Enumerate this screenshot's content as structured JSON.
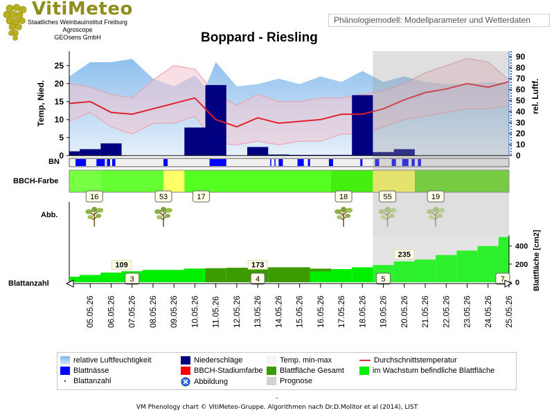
{
  "header": {
    "logo_text": "VitiMeteo",
    "logo_lines": [
      "Staatliches Weinbauinstitut Freiburg",
      "Agroscope",
      "GEOsens GmbH"
    ],
    "model_label": "Phänologiemodell: Modellparameter und Wetterdaten",
    "title": "Boppard - Riesling"
  },
  "colors": {
    "humidity": "#a9cdf0",
    "precip": "#000080",
    "temp_band": "#f2c6cf",
    "temp_line": "#e03030",
    "leafwet": "#0000ff",
    "bbch_green": "#66ff33",
    "bbch_yellow": "#ffff66",
    "leaf_total": "#3b9b00",
    "leaf_growing": "#00ee00",
    "forecast": "#d3d3d3"
  },
  "chart_data": {
    "type": "line",
    "dates": [
      "05.05.26",
      "06.05.26",
      "07.05.26",
      "08.05.26",
      "09.05.26",
      "10.05.26",
      "11.05.26",
      "12.05.26",
      "13.05.26",
      "14.05.26",
      "15.05.26",
      "16.05.26",
      "17.05.26",
      "18.05.26",
      "19.05.26",
      "20.05.26",
      "21.05.26",
      "22.05.26",
      "23.05.26",
      "24.05.26",
      "25.05.26"
    ],
    "y_left_label": "Temp, Nied.",
    "y_left_ticks": [
      0,
      5,
      10,
      15,
      20,
      25
    ],
    "y_left_range": [
      0,
      29
    ],
    "y_right_label": "rel. Luftf.",
    "y_right_ticks": [
      0,
      10,
      20,
      30,
      40,
      50,
      60,
      70,
      80,
      90
    ],
    "y_right_range": [
      0,
      95
    ],
    "forecast_from": "19.05.26",
    "humidity_x": [
      4.0,
      5.0,
      6.0,
      7.0,
      8.0,
      9.0,
      10.0,
      10.5,
      11.0,
      12.0,
      13.0,
      14.0,
      15.0,
      16.0,
      17.0,
      18.0,
      19.0,
      20.0,
      21.0,
      22.0,
      23.0,
      24.0,
      25.0
    ],
    "humidity_values": [
      72,
      85,
      85,
      88,
      70,
      63,
      73,
      62,
      85,
      63,
      65,
      70,
      65,
      72,
      67,
      77,
      67,
      72,
      67,
      65,
      65,
      67,
      65
    ],
    "temp_x": [
      4.0,
      5.0,
      6.0,
      7.0,
      8.0,
      9.0,
      10.0,
      11.0,
      12.0,
      13.0,
      14.0,
      15.0,
      16.0,
      17.0,
      18.0,
      19.0,
      20.0,
      21.0,
      22.0,
      23.0,
      24.0,
      25.0
    ],
    "temp_min": [
      9.5,
      12,
      8,
      6,
      9,
      9,
      11,
      3.5,
      3,
      4,
      3,
      4,
      4,
      6,
      6,
      8,
      10,
      11,
      12,
      13,
      13,
      14
    ],
    "temp_mean": [
      14.5,
      15,
      12,
      11.5,
      13,
      14.5,
      16,
      10,
      8,
      10.5,
      9,
      9.5,
      10,
      11.5,
      11.5,
      13,
      15.5,
      17.5,
      18.5,
      20,
      19,
      20.5
    ],
    "temp_max": [
      20,
      19,
      17,
      16,
      21,
      25,
      24,
      17,
      14,
      17,
      15,
      15,
      16,
      16,
      17,
      18,
      20,
      23,
      25,
      27,
      26,
      21
    ],
    "precip": [
      {
        "x0": 4.0,
        "x1": 4.5,
        "value": 1.2
      },
      {
        "x0": 4.5,
        "x1": 5.5,
        "value": 1.8
      },
      {
        "x0": 5.5,
        "x1": 6.5,
        "value": 3.4
      },
      {
        "x0": 9.5,
        "x1": 10.5,
        "value": 7.8
      },
      {
        "x0": 10.5,
        "x1": 11.5,
        "value": 19.6
      },
      {
        "x0": 12.5,
        "x1": 13.5,
        "value": 2.4
      },
      {
        "x0": 13.5,
        "x1": 14.5,
        "value": 0.3
      },
      {
        "x0": 14.5,
        "x1": 15.5,
        "value": 0.2
      },
      {
        "x0": 15.5,
        "x1": 16.5,
        "value": 0.2
      },
      {
        "x0": 16.5,
        "x1": 17.5,
        "value": 0.2
      },
      {
        "x0": 17.5,
        "x1": 18.5,
        "value": 16.8
      },
      {
        "x0": 18.5,
        "x1": 19.5,
        "value": 1.0
      },
      {
        "x0": 19.5,
        "x1": 20.5,
        "value": 1.8
      }
    ],
    "leaf_wetness": [
      [
        4.3,
        4.8
      ],
      [
        5.3,
        5.7
      ],
      [
        5.8,
        5.95
      ],
      [
        6.05,
        6.2
      ],
      [
        8.5,
        8.7
      ],
      [
        10.7,
        11.5
      ],
      [
        13.6,
        13.65
      ],
      [
        13.8,
        13.85
      ],
      [
        14.0,
        14.2
      ],
      [
        14.9,
        15.2
      ],
      [
        15.4,
        15.5
      ],
      [
        16.4,
        16.6
      ],
      [
        17.9,
        18.0
      ],
      [
        18.6,
        18.8
      ],
      [
        19.4,
        19.6
      ],
      [
        19.9,
        20.2
      ],
      [
        20.35,
        20.5
      ],
      [
        20.65,
        20.8
      ]
    ],
    "bbch_bands": [
      {
        "x0": 4.0,
        "x1": 5.5,
        "color": "#77ff44"
      },
      {
        "x0": 5.5,
        "x1": 8.5,
        "color": "#66ff33"
      },
      {
        "x0": 8.5,
        "x1": 9.5,
        "color": "#ffff66"
      },
      {
        "x0": 9.5,
        "x1": 16.5,
        "color": "#55ff22"
      },
      {
        "x0": 16.5,
        "x1": 18.5,
        "color": "#44ee11"
      },
      {
        "x0": 18.5,
        "x1": 20.5,
        "color": "#e3e36d"
      },
      {
        "x0": 20.5,
        "x1": 25.0,
        "color": "#77cc44"
      }
    ],
    "bbch_labels": [
      {
        "x": 5.2,
        "text": "16",
        "icon": true
      },
      {
        "x": 8.5,
        "text": "53",
        "icon": true
      },
      {
        "x": 10.3,
        "text": "17",
        "icon": false
      },
      {
        "x": 17.1,
        "text": "18",
        "icon": true
      },
      {
        "x": 19.2,
        "text": "55",
        "icon": true
      },
      {
        "x": 21.5,
        "text": "19",
        "icon": true
      }
    ],
    "leaf_count_label": "Blattanzahl",
    "leaf_area_label": "Blattfläche [cm2]",
    "leaf_area_ticks": [
      0,
      200,
      400
    ],
    "leaf_area_range": [
      0,
      520
    ],
    "leaf_total": [
      {
        "x0": 4.0,
        "x1": 4.5,
        "value": 60
      },
      {
        "x0": 4.5,
        "x1": 5.5,
        "value": 80
      },
      {
        "x0": 5.5,
        "x1": 6.5,
        "value": 105
      },
      {
        "x0": 6.5,
        "x1": 7.5,
        "value": 120
      },
      {
        "x0": 7.5,
        "x1": 9.5,
        "value": 135
      },
      {
        "x0": 9.5,
        "x1": 10.5,
        "value": 150
      },
      {
        "x0": 10.5,
        "x1": 11.5,
        "value": 155
      },
      {
        "x0": 11.5,
        "x1": 13.5,
        "value": 160
      },
      {
        "x0": 13.5,
        "x1": 15.5,
        "value": 165
      },
      {
        "x0": 15.5,
        "x1": 16.5,
        "value": 150
      }
    ],
    "leaf_growing": [
      {
        "x0": 4.0,
        "x1": 4.5,
        "value": 60
      },
      {
        "x0": 4.5,
        "x1": 5.5,
        "value": 80
      },
      {
        "x0": 5.5,
        "x1": 6.5,
        "value": 105
      },
      {
        "x0": 6.5,
        "x1": 7.5,
        "value": 120
      },
      {
        "x0": 7.5,
        "x1": 9.5,
        "value": 135
      },
      {
        "x0": 9.5,
        "x1": 10.5,
        "value": 150
      },
      {
        "x0": 15.5,
        "x1": 16.5,
        "value": 120
      },
      {
        "x0": 16.5,
        "x1": 17.5,
        "value": 145
      },
      {
        "x0": 17.5,
        "x1": 18.5,
        "value": 165
      },
      {
        "x0": 18.5,
        "x1": 19.5,
        "value": 190
      },
      {
        "x0": 19.5,
        "x1": 20.5,
        "value": 230
      },
      {
        "x0": 20.5,
        "x1": 21.5,
        "value": 250
      },
      {
        "x0": 21.5,
        "x1": 22.5,
        "value": 300
      },
      {
        "x0": 22.5,
        "x1": 23.5,
        "value": 350
      },
      {
        "x0": 23.5,
        "x1": 24.5,
        "value": 400
      },
      {
        "x0": 24.5,
        "x1": 25.0,
        "value": 500
      }
    ],
    "leaf_area_labels": [
      {
        "x": 6.5,
        "text": "109"
      },
      {
        "x": 13.0,
        "text": "173"
      },
      {
        "x": 20.0,
        "text": "235"
      }
    ],
    "leaf_count_labels": [
      {
        "x": 7.0,
        "text": "3"
      },
      {
        "x": 13.0,
        "text": "4"
      },
      {
        "x": 19.0,
        "text": "5"
      },
      {
        "x": 24.7,
        "text": "7"
      }
    ]
  },
  "row_labels": {
    "bn": "BN",
    "bbch": "BBCH-Farbe",
    "abb": "Abb.",
    "blattanzahl": "Blattanzahl"
  },
  "legend": [
    {
      "label": "relative Luftfeuchtigkeit",
      "swatch": "humidity-gradient"
    },
    {
      "label": "Niederschläge",
      "swatch": "#000080"
    },
    {
      "label": "Temp. min-max",
      "swatch": "#f4f4f4"
    },
    {
      "label": "Durchschnittstemperatur",
      "swatch": "line-red"
    },
    {
      "label": "Blattnässe",
      "swatch": "#0000ff"
    },
    {
      "label": "BBCH-Stadiumfarbe",
      "swatch": "#ff0000"
    },
    {
      "label": "Blattfläche Gesamt",
      "swatch": "#3b9b00"
    },
    {
      "label": "im Wachstum befindliche Blattfläche",
      "swatch": "#00ee00"
    },
    {
      "label": "Blattanzahl",
      "swatch": "dot"
    },
    {
      "label": "Abbildung",
      "swatch": "icon"
    },
    {
      "label": "Prognose",
      "swatch": "#d3d3d3"
    }
  ],
  "footer": {
    "dash": "-",
    "text": "VM Phenology chart © VitiMeteo-Gruppe. Algorithmen nach Dr.D.Molitor et al (2014), LIST"
  }
}
